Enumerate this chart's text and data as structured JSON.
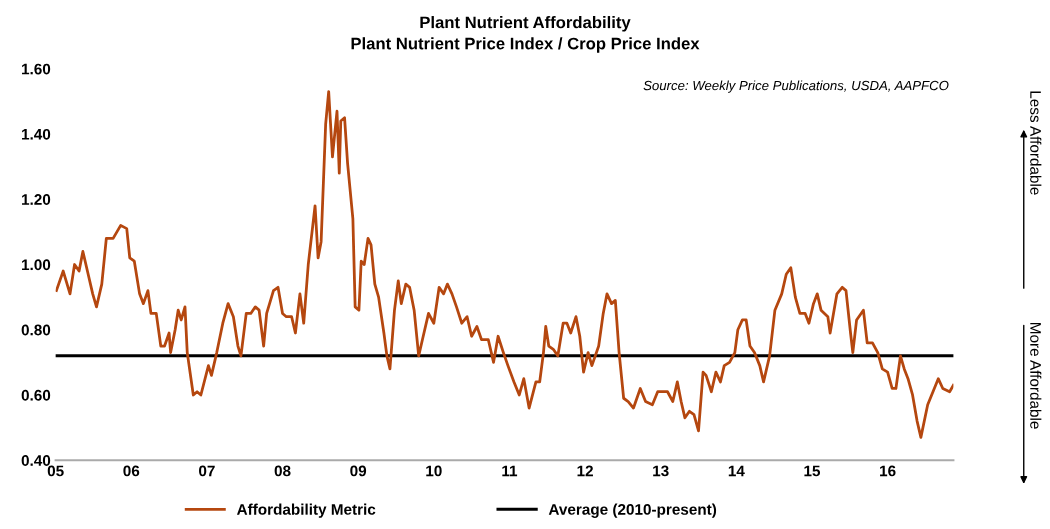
{
  "chart_data": {
    "type": "line",
    "title": "Plant Nutrient Affordability",
    "subtitle": "Plant Nutrient Price Index / Crop Price Index",
    "annotations": [
      "Source: Weekly Price Publications, USDA, AAPFCO",
      "Less Affordable",
      "More Affordable"
    ],
    "xlim": [
      2005,
      2016.87
    ],
    "xticks": [
      {
        "value": 2005,
        "label": "05"
      },
      {
        "value": 2006,
        "label": "06"
      },
      {
        "value": 2007,
        "label": "07"
      },
      {
        "value": 2008,
        "label": "08"
      },
      {
        "value": 2009,
        "label": "09"
      },
      {
        "value": 2010,
        "label": "10"
      },
      {
        "value": 2011,
        "label": "11"
      },
      {
        "value": 2012,
        "label": "12"
      },
      {
        "value": 2013,
        "label": "13"
      },
      {
        "value": 2014,
        "label": "14"
      },
      {
        "value": 2015,
        "label": "15"
      },
      {
        "value": 2016,
        "label": "16"
      }
    ],
    "ylim": [
      0.4,
      1.6
    ],
    "yticks": [
      {
        "value": 0.4,
        "label": "0.40"
      },
      {
        "value": 0.6,
        "label": "0.60"
      },
      {
        "value": 0.8,
        "label": "0.80"
      },
      {
        "value": 1.0,
        "label": "1.00"
      },
      {
        "value": 1.2,
        "label": "1.20"
      },
      {
        "value": 1.4,
        "label": "1.40"
      },
      {
        "value": 1.6,
        "label": "1.60"
      }
    ],
    "grid": false,
    "legend": "bottom",
    "marker": "none",
    "line_style": "solid",
    "ref_lines": [
      {
        "axis": "y",
        "value": 0.72,
        "label": "Average (2010-present)",
        "color": "#000000"
      }
    ],
    "series": [
      {
        "name": "Affordability Metric",
        "color": "#b5470f",
        "x": [
          2005.01,
          2005.1,
          2005.19,
          2005.25,
          2005.31,
          2005.36,
          2005.42,
          2005.49,
          2005.54,
          2005.61,
          2005.67,
          2005.76,
          2005.86,
          2005.94,
          2005.98,
          2006.04,
          2006.11,
          2006.16,
          2006.22,
          2006.26,
          2006.33,
          2006.39,
          2006.44,
          2006.5,
          2006.52,
          2006.58,
          2006.62,
          2006.66,
          2006.71,
          2006.74,
          2006.82,
          2006.87,
          2006.92,
          2007.02,
          2007.06,
          2007.13,
          2007.21,
          2007.28,
          2007.35,
          2007.41,
          2007.45,
          2007.52,
          2007.58,
          2007.64,
          2007.69,
          2007.75,
          2007.79,
          2007.88,
          2007.94,
          2008.0,
          2008.05,
          2008.12,
          2008.17,
          2008.23,
          2008.28,
          2008.34,
          2008.4,
          2008.43,
          2008.47,
          2008.51,
          2008.57,
          2008.61,
          2008.66,
          2008.72,
          2008.75,
          2008.77,
          2008.82,
          2008.86,
          2008.93,
          2008.96,
          2009.01,
          2009.04,
          2009.08,
          2009.13,
          2009.17,
          2009.22,
          2009.27,
          2009.34,
          2009.38,
          2009.42,
          2009.48,
          2009.53,
          2009.57,
          2009.63,
          2009.68,
          2009.74,
          2009.8,
          2009.85,
          2009.93,
          2010.0,
          2010.07,
          2010.13,
          2010.18,
          2010.24,
          2010.3,
          2010.37,
          2010.44,
          2010.5,
          2010.57,
          2010.63,
          2010.72,
          2010.79,
          2010.85,
          2010.92,
          2010.98,
          2011.06,
          2011.13,
          2011.19,
          2011.26,
          2011.35,
          2011.4,
          2011.45,
          2011.48,
          2011.52,
          2011.58,
          2011.64,
          2011.71,
          2011.76,
          2011.81,
          2011.88,
          2011.93,
          2011.98,
          2012.04,
          2012.09,
          2012.18,
          2012.24,
          2012.29,
          2012.35,
          2012.4,
          2012.45,
          2012.51,
          2012.57,
          2012.64,
          2012.73,
          2012.8,
          2012.89,
          2012.96,
          2013.09,
          2013.16,
          2013.22,
          2013.27,
          2013.32,
          2013.38,
          2013.44,
          2013.5,
          2013.56,
          2013.6,
          2013.67,
          2013.73,
          2013.79,
          2013.84,
          2013.91,
          2013.98,
          2014.02,
          2014.08,
          2014.13,
          2014.18,
          2014.24,
          2014.31,
          2014.36,
          2014.44,
          2014.51,
          2014.6,
          2014.66,
          2014.72,
          2014.78,
          2014.84,
          2014.91,
          2014.96,
          2015.02,
          2015.07,
          2015.12,
          2015.21,
          2015.24,
          2015.33,
          2015.4,
          2015.45,
          2015.51,
          2015.54,
          2015.59,
          2015.68,
          2015.73,
          2015.8,
          2015.87,
          2015.93,
          2016.0,
          2016.06,
          2016.11,
          2016.17,
          2016.22,
          2016.27,
          2016.33,
          2016.39,
          2016.44,
          2016.53,
          2016.6,
          2016.67,
          2016.73,
          2016.82,
          2016.87
        ],
        "values": [
          0.92,
          0.98,
          0.91,
          1.0,
          0.98,
          1.04,
          0.98,
          0.91,
          0.87,
          0.94,
          1.08,
          1.08,
          1.12,
          1.11,
          1.02,
          1.01,
          0.91,
          0.88,
          0.92,
          0.85,
          0.85,
          0.75,
          0.75,
          0.79,
          0.73,
          0.8,
          0.86,
          0.83,
          0.87,
          0.73,
          0.6,
          0.61,
          0.6,
          0.69,
          0.66,
          0.73,
          0.82,
          0.88,
          0.84,
          0.75,
          0.72,
          0.85,
          0.85,
          0.87,
          0.86,
          0.75,
          0.85,
          0.92,
          0.93,
          0.85,
          0.84,
          0.84,
          0.79,
          0.91,
          0.82,
          1.0,
          1.12,
          1.18,
          1.02,
          1.07,
          1.43,
          1.53,
          1.33,
          1.47,
          1.28,
          1.44,
          1.45,
          1.31,
          1.14,
          0.87,
          0.86,
          1.01,
          1.0,
          1.08,
          1.06,
          0.94,
          0.9,
          0.79,
          0.72,
          0.68,
          0.86,
          0.95,
          0.88,
          0.94,
          0.93,
          0.86,
          0.72,
          0.77,
          0.85,
          0.82,
          0.93,
          0.91,
          0.94,
          0.91,
          0.87,
          0.82,
          0.84,
          0.78,
          0.81,
          0.77,
          0.77,
          0.7,
          0.78,
          0.73,
          0.69,
          0.64,
          0.6,
          0.65,
          0.56,
          0.64,
          0.64,
          0.73,
          0.81,
          0.75,
          0.74,
          0.72,
          0.82,
          0.82,
          0.79,
          0.84,
          0.78,
          0.67,
          0.73,
          0.69,
          0.75,
          0.85,
          0.91,
          0.88,
          0.89,
          0.73,
          0.59,
          0.58,
          0.56,
          0.62,
          0.58,
          0.57,
          0.61,
          0.61,
          0.58,
          0.64,
          0.58,
          0.53,
          0.55,
          0.54,
          0.49,
          0.67,
          0.66,
          0.61,
          0.67,
          0.64,
          0.69,
          0.7,
          0.73,
          0.8,
          0.83,
          0.83,
          0.75,
          0.73,
          0.69,
          0.64,
          0.72,
          0.86,
          0.91,
          0.97,
          0.99,
          0.9,
          0.85,
          0.85,
          0.82,
          0.88,
          0.91,
          0.86,
          0.84,
          0.79,
          0.91,
          0.93,
          0.92,
          0.79,
          0.73,
          0.83,
          0.86,
          0.76,
          0.76,
          0.73,
          0.68,
          0.67,
          0.62,
          0.62,
          0.72,
          0.68,
          0.65,
          0.6,
          0.52,
          0.47,
          0.57,
          0.61,
          0.65,
          0.62,
          0.61,
          0.63
        ]
      }
    ]
  }
}
